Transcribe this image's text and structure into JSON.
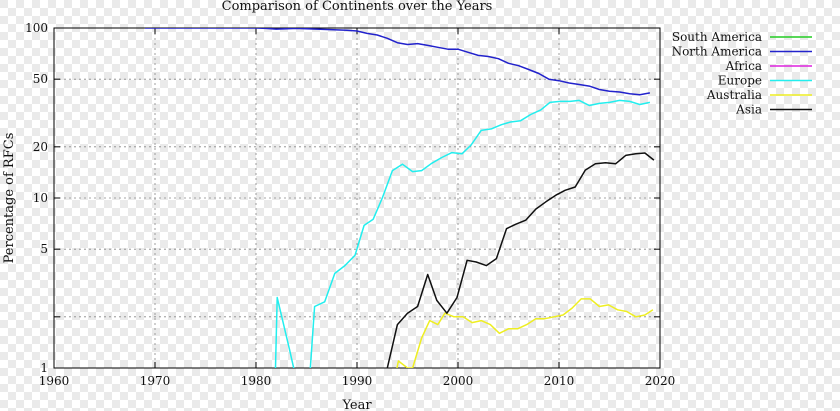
{
  "chart_data": {
    "type": "line",
    "title": "Comparison of Continents over the Years",
    "xlabel": "Year",
    "ylabel": "Percentage of RFCs",
    "xlim": [
      1960,
      2020
    ],
    "ylim": [
      1,
      100
    ],
    "y_scale": "log",
    "x_ticks": [
      1960,
      1970,
      1980,
      1990,
      2000,
      2010,
      2020
    ],
    "y_ticks": [
      1,
      2,
      5,
      10,
      20,
      50,
      100
    ],
    "y_tick_labels": [
      "1",
      "",
      "5",
      "10",
      "20",
      "50",
      "100"
    ],
    "grid": true,
    "legend_position": "top-right, outside plot",
    "series": [
      {
        "name": "South America",
        "color": "#22cc22",
        "points": []
      },
      {
        "name": "North America",
        "color": "#2222cc",
        "points": [
          [
            1969,
            100
          ],
          [
            1972,
            100
          ],
          [
            1975,
            100
          ],
          [
            1978,
            100
          ],
          [
            1980,
            100
          ],
          [
            1981,
            99.5
          ],
          [
            1982,
            98.5
          ],
          [
            1983,
            99
          ],
          [
            1984,
            99.5
          ],
          [
            1985,
            99
          ],
          [
            1986,
            98.5
          ],
          [
            1987,
            98
          ],
          [
            1988,
            97.5
          ],
          [
            1989,
            97
          ],
          [
            1990,
            96
          ],
          [
            1991,
            93
          ],
          [
            1992,
            91
          ],
          [
            1993,
            87
          ],
          [
            1994,
            82
          ],
          [
            1995,
            80
          ],
          [
            1996,
            81
          ],
          [
            1997,
            79
          ],
          [
            1998,
            77
          ],
          [
            1999,
            75
          ],
          [
            2000,
            75
          ],
          [
            2001,
            72
          ],
          [
            2002,
            69
          ],
          [
            2003,
            68
          ],
          [
            2004,
            66
          ],
          [
            2005,
            62
          ],
          [
            2006,
            60
          ],
          [
            2007,
            57
          ],
          [
            2008,
            54
          ],
          [
            2009,
            50
          ],
          [
            2010,
            49
          ],
          [
            2011,
            47.5
          ],
          [
            2012,
            46.5
          ],
          [
            2013,
            45.5
          ],
          [
            2014,
            43.5
          ],
          [
            2015,
            42.5
          ],
          [
            2016,
            42
          ],
          [
            2017,
            41
          ],
          [
            2018,
            40.5
          ],
          [
            2019,
            41.5
          ]
        ]
      },
      {
        "name": "Africa",
        "color": "#dd22dd",
        "points": []
      },
      {
        "name": "Europe",
        "color": "#22eeee",
        "points": [
          [
            1981.9,
            0.85
          ],
          [
            1982.1,
            2.6
          ],
          [
            1983.3,
            1.3
          ],
          [
            1984,
            0.85
          ],
          [
            1985.3,
            0.85
          ],
          [
            1985.8,
            2.3
          ],
          [
            1986.8,
            2.45
          ],
          [
            1987.8,
            3.6
          ],
          [
            1988.8,
            4
          ],
          [
            1989.8,
            4.6
          ],
          [
            1990.7,
            6.9
          ],
          [
            1991.6,
            7.5
          ],
          [
            1992.5,
            10
          ],
          [
            1993.5,
            14.5
          ],
          [
            1994.5,
            15.8
          ],
          [
            1995.5,
            14.3
          ],
          [
            1996.4,
            14.5
          ],
          [
            1997.4,
            16
          ],
          [
            1998.4,
            17.3
          ],
          [
            1999.4,
            18.5
          ],
          [
            2000.4,
            18.2
          ],
          [
            2001.3,
            20.5
          ],
          [
            2002.3,
            25
          ],
          [
            2003.3,
            25.5
          ],
          [
            2004.3,
            27
          ],
          [
            2005.2,
            28
          ],
          [
            2006.2,
            28.5
          ],
          [
            2007.2,
            31
          ],
          [
            2008.2,
            33
          ],
          [
            2009.1,
            36.5
          ],
          [
            2010.1,
            37
          ],
          [
            2011.1,
            37
          ],
          [
            2012,
            37.5
          ],
          [
            2013,
            35
          ],
          [
            2014,
            36
          ],
          [
            2015,
            36.5
          ],
          [
            2016,
            37.5
          ],
          [
            2017,
            37
          ],
          [
            2018,
            35.5
          ],
          [
            2019,
            36.5
          ]
        ]
      },
      {
        "name": "Australia",
        "color": "#eeee22",
        "points": [
          [
            1993.8,
            0.9
          ],
          [
            1994.1,
            1.1
          ],
          [
            1995,
            1
          ],
          [
            1995.5,
            1
          ],
          [
            1996.4,
            1.5
          ],
          [
            1997.2,
            1.9
          ],
          [
            1998,
            1.8
          ],
          [
            1998.7,
            2.1
          ],
          [
            1999.6,
            2
          ],
          [
            2000.5,
            2
          ],
          [
            2001.4,
            1.85
          ],
          [
            2002.3,
            1.9
          ],
          [
            2003.2,
            1.8
          ],
          [
            2004.1,
            1.6
          ],
          [
            2005,
            1.7
          ],
          [
            2005.9,
            1.7
          ],
          [
            2006.8,
            1.8
          ],
          [
            2007.7,
            1.95
          ],
          [
            2008.6,
            1.95
          ],
          [
            2009.5,
            2
          ],
          [
            2010.4,
            2.05
          ],
          [
            2011.3,
            2.25
          ],
          [
            2012.2,
            2.55
          ],
          [
            2013.1,
            2.55
          ],
          [
            2014,
            2.3
          ],
          [
            2014.9,
            2.35
          ],
          [
            2015.8,
            2.2
          ],
          [
            2016.7,
            2.15
          ],
          [
            2017.6,
            2
          ],
          [
            2018.5,
            2.05
          ],
          [
            2019.3,
            2.2
          ]
        ]
      },
      {
        "name": "Asia",
        "color": "#111111",
        "points": [
          [
            1993,
            1
          ],
          [
            1994,
            1.8
          ],
          [
            1995,
            2.1
          ],
          [
            1996,
            2.3
          ],
          [
            1997,
            3.55
          ],
          [
            1997.9,
            2.5
          ],
          [
            1998.9,
            2.1
          ],
          [
            1999.9,
            2.6
          ],
          [
            2000.9,
            4.3
          ],
          [
            2001.8,
            4.2
          ],
          [
            2002.8,
            4
          ],
          [
            2003.8,
            4.4
          ],
          [
            2004.8,
            6.6
          ],
          [
            2005.7,
            7
          ],
          [
            2006.7,
            7.4
          ],
          [
            2007.7,
            8.6
          ],
          [
            2008.7,
            9.5
          ],
          [
            2009.7,
            10.4
          ],
          [
            2010.6,
            11.1
          ],
          [
            2011.6,
            11.6
          ],
          [
            2012.6,
            14.6
          ],
          [
            2013.6,
            15.9
          ],
          [
            2014.6,
            16.1
          ],
          [
            2015.6,
            15.9
          ],
          [
            2016.6,
            17.8
          ],
          [
            2017.6,
            18.2
          ],
          [
            2018.5,
            18.4
          ],
          [
            2019.4,
            16.7
          ]
        ]
      }
    ]
  }
}
